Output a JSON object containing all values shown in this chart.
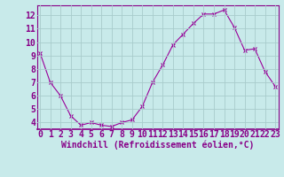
{
  "hours": [
    0,
    1,
    2,
    3,
    4,
    5,
    6,
    7,
    8,
    9,
    10,
    11,
    12,
    13,
    14,
    15,
    16,
    17,
    18,
    19,
    20,
    21,
    22,
    23
  ],
  "values": [
    9.2,
    7.0,
    6.0,
    4.5,
    3.8,
    4.0,
    3.8,
    3.7,
    4.0,
    4.2,
    5.2,
    7.0,
    8.3,
    9.8,
    10.6,
    11.4,
    12.1,
    12.1,
    12.4,
    11.1,
    9.4,
    9.5,
    7.8,
    6.7
  ],
  "line_color": "#990099",
  "marker": "x",
  "bg_color": "#c8eaea",
  "grid_color": "#a8cccc",
  "axis_label_color": "#880088",
  "xlabel": "Windchill (Refroidissement éolien,°C)",
  "ylim": [
    3.5,
    12.75
  ],
  "yticks": [
    4,
    5,
    6,
    7,
    8,
    9,
    10,
    11,
    12
  ],
  "spine_color": "#880088",
  "font_family": "monospace",
  "tick_fontsize": 7.0,
  "xlabel_fontsize": 7.0
}
